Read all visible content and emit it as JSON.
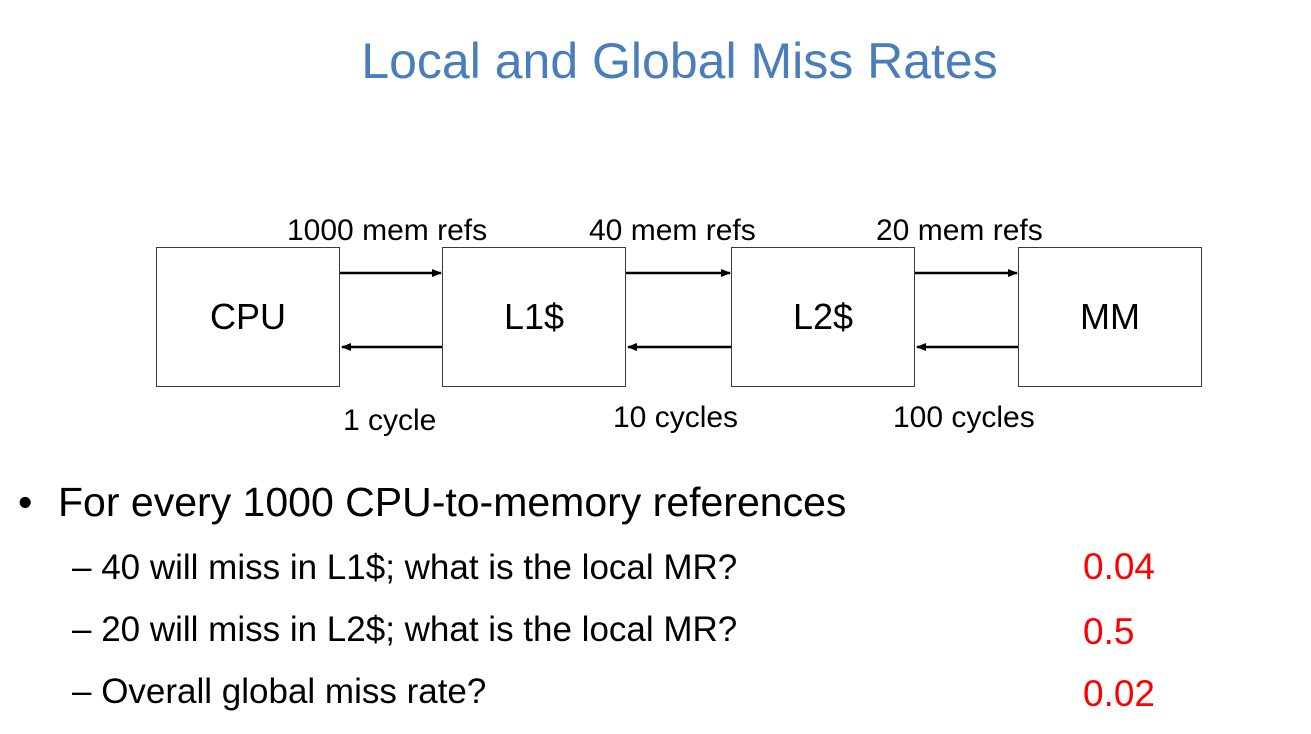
{
  "title": "Local and Global Miss Rates",
  "diagram": {
    "boxes": [
      "CPU",
      "L1$",
      "L2$",
      "MM"
    ],
    "top_labels": [
      "1000 mem refs",
      "40 mem refs",
      "20 mem refs"
    ],
    "bottom_labels": [
      "1 cycle",
      "10 cycles",
      "100 cycles"
    ]
  },
  "bullets": {
    "main": "For every 1000 CPU-to-memory references",
    "items": [
      {
        "text": "– 40 will miss in L1$; what is the local MR?",
        "answer": "0.04"
      },
      {
        "text": "– 20 will miss in L2$; what is the local MR?",
        "answer": "0.5"
      },
      {
        "text": "– Overall global miss rate?",
        "answer": "0.02"
      }
    ]
  },
  "colors": {
    "title": "#4a7ebb",
    "answer": "#ff0000"
  }
}
